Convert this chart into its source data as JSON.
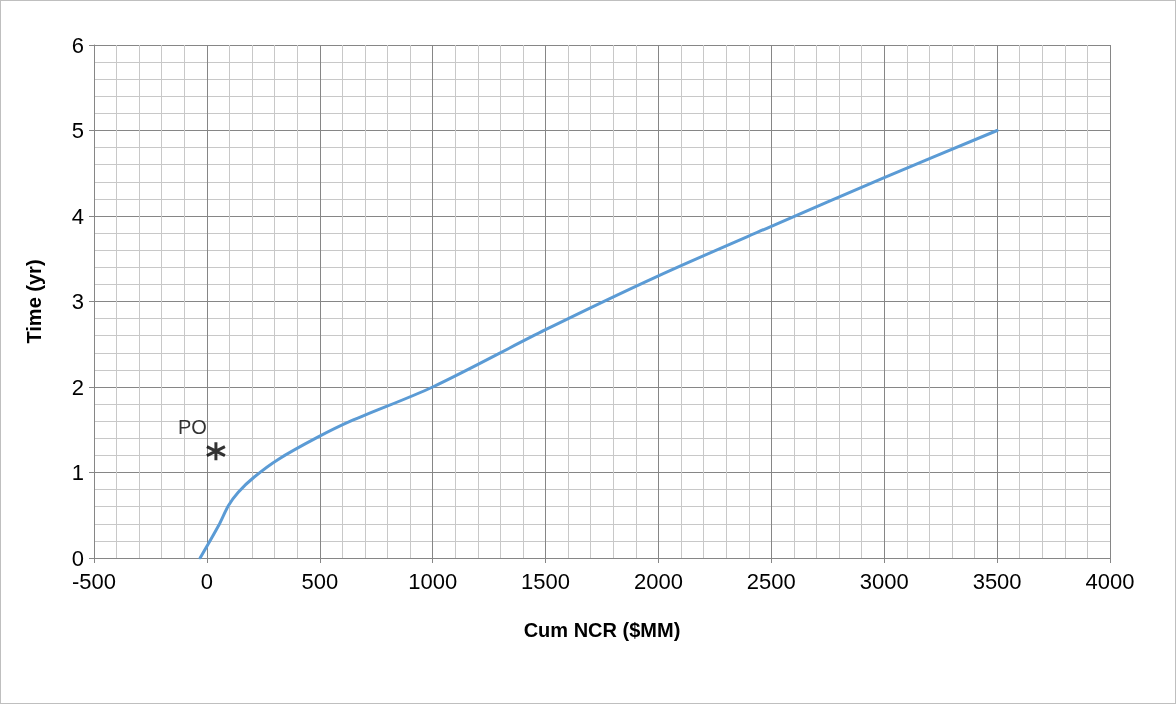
{
  "chart_data": {
    "type": "line",
    "xlabel": "Cum NCR ($MM)",
    "ylabel": "Time (yr)",
    "series": [
      {
        "color": "#5b9bd5",
        "marker": "none",
        "x": [
          -30,
          52,
          95,
          139,
          211,
          314,
          489,
          636,
          1000,
          1500,
          2000,
          2500,
          3000,
          3500
        ],
        "values": [
          0,
          0.38,
          0.61,
          0.77,
          0.95,
          1.15,
          1.41,
          1.6,
          2.0,
          2.67,
          3.3,
          3.88,
          4.45,
          5.0
        ]
      },
      {
        "type": "scatter",
        "color": "#000000",
        "marker": "cross",
        "x": [
          40
        ],
        "values": [
          1.25
        ]
      }
    ],
    "annotations": [
      {
        "text": "PO",
        "x": 40,
        "y": 1.25
      }
    ],
    "xlim": [
      -500,
      4000
    ],
    "xticks": [
      -500,
      0,
      500,
      1000,
      1500,
      2000,
      2500,
      3000,
      3500,
      4000
    ],
    "ylim": [
      0,
      6
    ],
    "yticks": [
      0,
      1,
      2,
      3,
      4,
      5,
      6
    ],
    "grid": true
  }
}
